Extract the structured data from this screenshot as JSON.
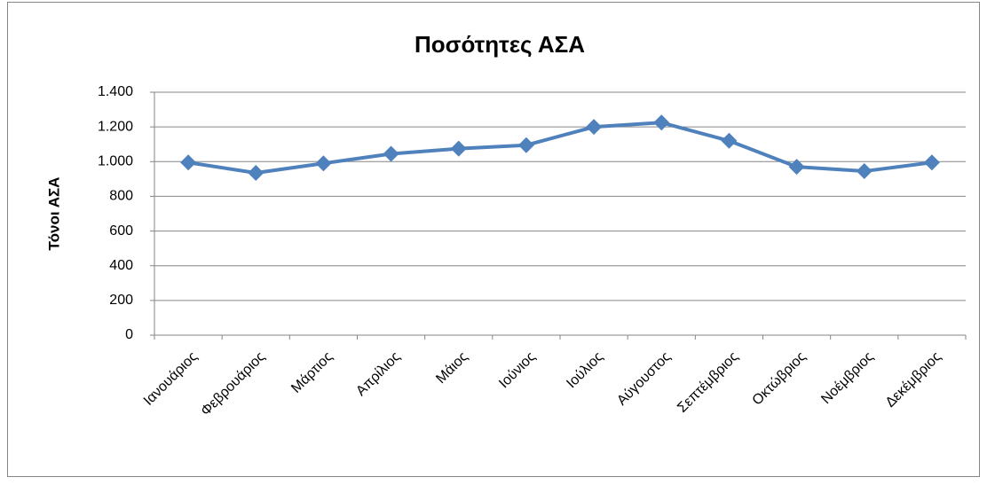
{
  "chart_data": {
    "type": "line",
    "title": "Ποσότητες ΑΣΑ",
    "y_label": "Τόνοι ΑΣΑ",
    "categories": [
      "Ιανουάριος",
      "Φεβρουάριος",
      "Μάρτιος",
      "Απρίλιος",
      "Μάιος",
      "Ιούνιος",
      "Ιούλιος",
      "Αύγουστος",
      "Σεπτέμβριος",
      "Οκτώβριος",
      "Νοέμβριος",
      "Δεκέμβριος"
    ],
    "values": [
      995,
      935,
      990,
      1045,
      1075,
      1095,
      1200,
      1225,
      1120,
      970,
      945,
      995
    ],
    "color": "#4f81bd",
    "ylim": [
      0,
      1400
    ],
    "yticks": [
      0,
      200,
      400,
      600,
      800,
      {
        "value": 1000,
        "label": "1.000"
      },
      {
        "value": 1200,
        "label": "1.200"
      },
      {
        "value": 1400,
        "label": "1.400"
      }
    ],
    "grid": true
  }
}
